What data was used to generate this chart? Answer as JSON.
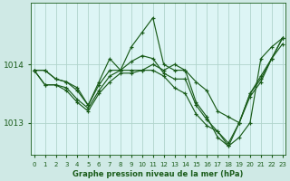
{
  "bg_color": "#cfe9e5",
  "plot_bg_color": "#ddf5f5",
  "grid_color": "#b0d4cc",
  "line_color": "#1a5c1a",
  "xlabel": "Graphe pression niveau de la mer (hPa)",
  "yticks": [
    1013,
    1014
  ],
  "xticks": [
    0,
    1,
    2,
    3,
    4,
    5,
    6,
    7,
    8,
    9,
    10,
    11,
    12,
    13,
    14,
    15,
    16,
    17,
    18,
    19,
    20,
    21,
    22,
    23
  ],
  "xlim": [
    -0.3,
    23.3
  ],
  "ylim": [
    1012.45,
    1015.05
  ],
  "series": [
    [
      1013.9,
      1013.9,
      1013.75,
      1013.7,
      1013.55,
      1013.3,
      1013.65,
      1013.9,
      1013.9,
      1013.9,
      1013.9,
      1014.0,
      1013.9,
      1014.0,
      1013.9,
      1013.7,
      1013.55,
      1013.2,
      1013.1,
      1013.0,
      1013.5,
      1013.8,
      1014.1,
      1014.35
    ],
    [
      1013.9,
      1013.9,
      1013.75,
      1013.7,
      1013.6,
      1013.3,
      1013.7,
      1014.1,
      1013.9,
      1014.3,
      1014.55,
      1014.8,
      1014.0,
      1013.9,
      1013.9,
      1013.35,
      1013.1,
      1012.75,
      1012.6,
      1012.75,
      1013.0,
      1014.1,
      1014.3,
      1014.45
    ],
    [
      1013.9,
      1013.65,
      1013.65,
      1013.6,
      1013.4,
      1013.25,
      1013.55,
      1013.8,
      1013.9,
      1014.05,
      1014.15,
      1014.1,
      1013.85,
      1013.75,
      1013.75,
      1013.3,
      1013.05,
      1012.85,
      1012.65,
      1013.0,
      1013.5,
      1013.75,
      1014.1,
      1014.45
    ],
    [
      1013.9,
      1013.65,
      1013.65,
      1013.55,
      1013.35,
      1013.2,
      1013.5,
      1013.7,
      1013.85,
      1013.85,
      1013.9,
      1013.9,
      1013.8,
      1013.6,
      1013.5,
      1013.15,
      1012.95,
      1012.85,
      1012.6,
      1013.0,
      1013.45,
      1013.7,
      1014.1,
      1014.45
    ]
  ],
  "xlabel_fontsize": 6.0,
  "ytick_fontsize": 6.5,
  "xtick_fontsize": 5.0
}
